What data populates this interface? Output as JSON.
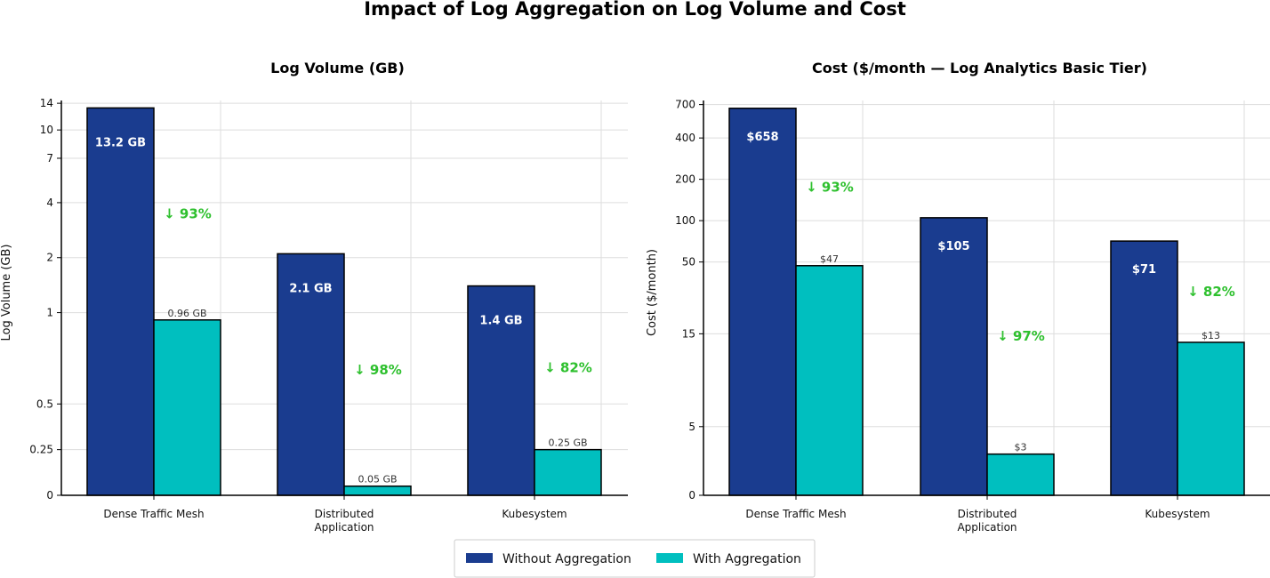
{
  "title": "Impact of Log Aggregation on Log Volume and Cost",
  "legend": {
    "items": [
      {
        "label": "Without Aggregation",
        "color": "#1a3c8f"
      },
      {
        "label": "With Aggregation",
        "color": "#00bfbf"
      }
    ],
    "placement": "bottom-center"
  },
  "colors": {
    "without": "#1a3c8f",
    "with": "#00bfbf",
    "reduction": "#2ec02e"
  },
  "chart_data": [
    {
      "type": "bar",
      "title": "Log Volume (GB)",
      "xlabel": "",
      "ylabel": "Log Volume (GB)",
      "categories": [
        "Dense Traffic Mesh",
        "Distributed\nApplication",
        "Kubesystem"
      ],
      "yscale": "symlog",
      "yticks": [
        0,
        0.25,
        0.5,
        1,
        2,
        4,
        7,
        10,
        14
      ],
      "ytick_labels": [
        "0",
        "0.25",
        "0.5",
        "1",
        "2",
        "4",
        "7",
        "10",
        "14"
      ],
      "ylim": [
        0,
        14.5
      ],
      "grid": true,
      "series": [
        {
          "name": "Without Aggregation",
          "values": [
            13.2,
            2.1,
            1.4
          ],
          "labels": [
            "13.2 GB",
            "2.1 GB",
            "1.4 GB"
          ]
        },
        {
          "name": "With Aggregation",
          "values": [
            0.96,
            0.05,
            0.25
          ],
          "labels": [
            "0.96 GB",
            "0.05 GB",
            "0.25 GB"
          ]
        }
      ],
      "reductions": [
        "↓ 93%",
        "↓ 98%",
        "↓ 82%"
      ]
    },
    {
      "type": "bar",
      "title": "Cost ($/month — Log Analytics Basic Tier)",
      "xlabel": "",
      "ylabel": "Cost ($/month)",
      "categories": [
        "Dense Traffic Mesh",
        "Distributed\nApplication",
        "Kubesystem"
      ],
      "yscale": "symlog",
      "yticks": [
        0,
        5,
        15,
        50,
        100,
        200,
        400,
        700
      ],
      "ytick_labels": [
        "0",
        "5",
        "15",
        "50",
        "100",
        "200",
        "400",
        "700"
      ],
      "ylim": [
        0,
        750
      ],
      "grid": true,
      "series": [
        {
          "name": "Without Aggregation",
          "values": [
            658,
            105,
            71
          ],
          "labels": [
            "$658",
            "$105",
            "$71"
          ]
        },
        {
          "name": "With Aggregation",
          "values": [
            47,
            3,
            13
          ],
          "labels": [
            "$47",
            "$3",
            "$13"
          ]
        }
      ],
      "reductions": [
        "↓ 93%",
        "↓ 97%",
        "↓ 82%"
      ]
    }
  ]
}
